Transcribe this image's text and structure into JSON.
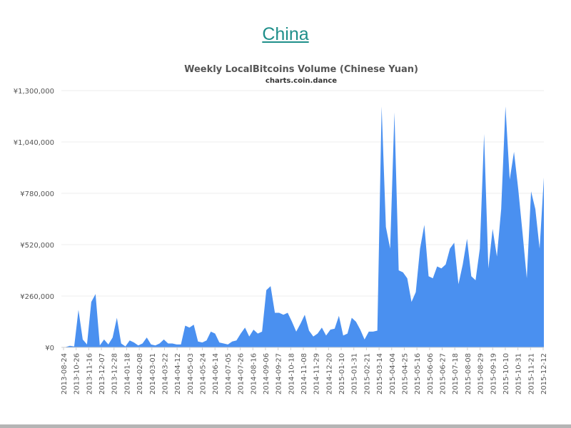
{
  "page": {
    "heading": "China"
  },
  "chart_data": {
    "type": "area",
    "title": "Weekly LocalBitcoins Volume (Chinese Yuan)",
    "subtitle": "charts.coin.dance",
    "xlabel": "",
    "ylabel": "",
    "ylim": [
      0,
      1300000
    ],
    "yticks": [
      0,
      260000,
      520000,
      780000,
      1040000,
      1300000
    ],
    "ytick_labels": [
      "¥0",
      "¥260,000",
      "¥520,000",
      "¥780,000",
      "¥1,040,000",
      "¥1,300,000"
    ],
    "grid": true,
    "legend": "none",
    "color": "#4a90f0",
    "x_tick_labels": [
      "2013-08-24",
      "2013-10-26",
      "2013-11-16",
      "2013-12-07",
      "2013-12-28",
      "2014-01-18",
      "2014-02-08",
      "2014-03-01",
      "2014-03-22",
      "2014-04-12",
      "2014-05-03",
      "2014-05-24",
      "2014-06-14",
      "2014-07-05",
      "2014-07-26",
      "2014-08-16",
      "2014-09-06",
      "2014-09-27",
      "2014-10-18",
      "2014-11-08",
      "2014-11-29",
      "2014-12-20",
      "2015-01-10",
      "2015-01-31",
      "2015-02-21",
      "2015-03-14",
      "2015-04-04",
      "2015-04-25",
      "2015-05-16",
      "2015-06-06",
      "2015-06-27",
      "2015-07-18",
      "2015-08-08",
      "2015-08-29",
      "2015-09-19",
      "2015-10-10",
      "2015-10-31",
      "2015-11-21",
      "2015-12-12"
    ],
    "values": [
      0,
      2000,
      8000,
      5000,
      190000,
      40000,
      15000,
      230000,
      270000,
      10000,
      40000,
      15000,
      50000,
      150000,
      20000,
      5000,
      35000,
      25000,
      10000,
      20000,
      50000,
      15000,
      10000,
      20000,
      40000,
      20000,
      20000,
      15000,
      15000,
      110000,
      100000,
      115000,
      30000,
      25000,
      35000,
      80000,
      70000,
      25000,
      20000,
      15000,
      30000,
      35000,
      70000,
      100000,
      55000,
      90000,
      70000,
      80000,
      290000,
      310000,
      175000,
      175000,
      165000,
      175000,
      130000,
      80000,
      120000,
      165000,
      85000,
      55000,
      70000,
      100000,
      60000,
      90000,
      95000,
      160000,
      60000,
      70000,
      150000,
      130000,
      90000,
      40000,
      80000,
      80000,
      85000,
      1220000,
      610000,
      500000,
      1190000,
      390000,
      380000,
      350000,
      230000,
      280000,
      500000,
      620000,
      360000,
      350000,
      410000,
      400000,
      420000,
      500000,
      530000,
      320000,
      420000,
      550000,
      360000,
      340000,
      500000,
      1080000,
      400000,
      600000,
      460000,
      700000,
      1220000,
      850000,
      990000,
      800000,
      580000,
      350000,
      790000,
      700000,
      500000,
      860000
    ]
  }
}
